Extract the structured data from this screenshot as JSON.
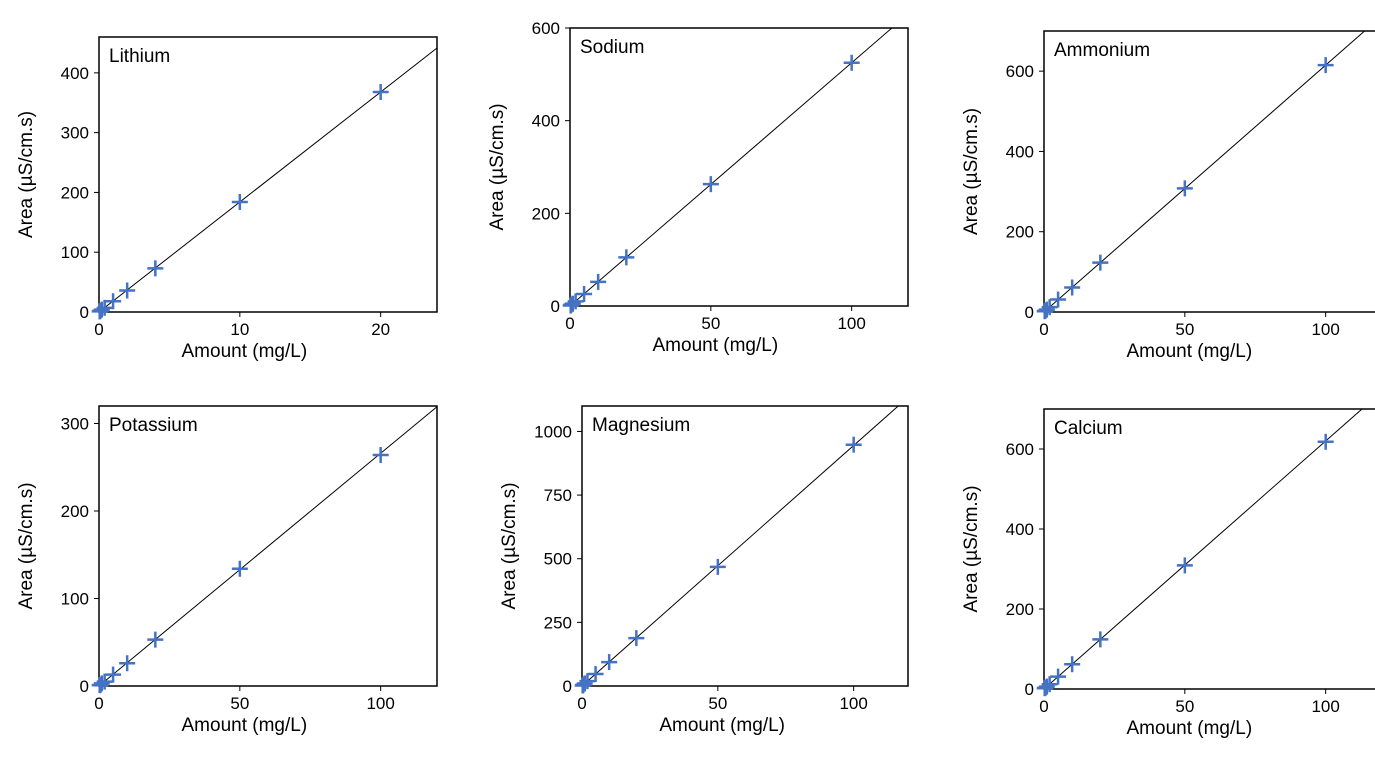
{
  "page": {
    "background": "#ffffff"
  },
  "style": {
    "marker_color": "#4472C4",
    "line_color": "#000000",
    "frame_color": "#000000"
  },
  "chart_data": [
    {
      "type": "scatter",
      "label": "Lithium",
      "xlabel": "Amount (mg/L)",
      "ylabel": "Area (µS/cm.s)",
      "xlim": [
        0,
        24
      ],
      "ylim": [
        0,
        460
      ],
      "xticks": [
        0,
        10,
        20
      ],
      "yticks": [
        0,
        100,
        200,
        300,
        400
      ],
      "x": [
        0.05,
        0.1,
        0.2,
        0.4,
        1,
        2,
        4,
        10,
        20
      ],
      "y": [
        1,
        2,
        4,
        7,
        18,
        36,
        73,
        184,
        368
      ],
      "fit_line": {
        "slope": 18.4,
        "intercept": 0
      }
    },
    {
      "type": "scatter",
      "label": "Sodium",
      "xlabel": "Amount (mg/L)",
      "ylabel": "Area (µS/cm.s)",
      "xlim": [
        0,
        120
      ],
      "ylim": [
        0,
        600
      ],
      "xticks": [
        0,
        50,
        100
      ],
      "yticks": [
        0,
        200,
        400,
        600
      ],
      "x": [
        0.25,
        0.5,
        1,
        2,
        5,
        10,
        20,
        50,
        100
      ],
      "y": [
        1,
        3,
        5,
        10,
        26,
        52,
        105,
        263,
        525
      ],
      "fit_line": {
        "slope": 5.25,
        "intercept": 0
      }
    },
    {
      "type": "scatter",
      "label": "Ammonium",
      "xlabel": "Amount (mg/L)",
      "ylabel": "Area (µS/cm.s)",
      "xlim": [
        0,
        120
      ],
      "ylim": [
        0,
        700
      ],
      "xticks": [
        0,
        50,
        100
      ],
      "yticks": [
        0,
        200,
        400,
        600
      ],
      "x": [
        0.25,
        0.5,
        1,
        2,
        5,
        10,
        20,
        50,
        100
      ],
      "y": [
        2,
        3,
        6,
        12,
        31,
        61,
        123,
        308,
        615
      ],
      "fit_line": {
        "slope": 6.15,
        "intercept": 0
      }
    },
    {
      "type": "scatter",
      "label": "Potassium",
      "xlabel": "Amount (mg/L)",
      "ylabel": "Area (µS/cm.s)",
      "xlim": [
        0,
        120
      ],
      "ylim": [
        0,
        320
      ],
      "xticks": [
        0,
        50,
        100
      ],
      "yticks": [
        0,
        100,
        200,
        300
      ],
      "x": [
        0.25,
        0.5,
        1,
        2,
        5,
        10,
        20,
        50,
        100
      ],
      "y": [
        1,
        1,
        3,
        5,
        13,
        26,
        53,
        134,
        264
      ],
      "fit_line": {
        "slope": 2.66,
        "intercept": 0
      }
    },
    {
      "type": "scatter",
      "label": "Magnesium",
      "xlabel": "Amount (mg/L)",
      "ylabel": "Area (µS/cm.s)",
      "xlim": [
        0,
        120
      ],
      "ylim": [
        0,
        1100
      ],
      "xticks": [
        0,
        50,
        100
      ],
      "yticks": [
        0,
        250,
        500,
        750,
        1000
      ],
      "x": [
        0.25,
        0.5,
        1,
        2,
        5,
        10,
        20,
        50,
        100
      ],
      "y": [
        2,
        5,
        10,
        19,
        47,
        94,
        188,
        468,
        948
      ],
      "fit_line": {
        "slope": 9.45,
        "intercept": 0
      }
    },
    {
      "type": "scatter",
      "label": "Calcium",
      "xlabel": "Amount (mg/L)",
      "ylabel": "Area (µS/cm.s)",
      "xlim": [
        0,
        120
      ],
      "ylim": [
        0,
        700
      ],
      "xticks": [
        0,
        50,
        100
      ],
      "yticks": [
        0,
        200,
        400,
        600
      ],
      "x": [
        0.25,
        0.5,
        1,
        2,
        5,
        10,
        20,
        50,
        100
      ],
      "y": [
        2,
        3,
        6,
        12,
        31,
        62,
        124,
        309,
        618
      ],
      "fit_line": {
        "slope": 6.2,
        "intercept": 0
      }
    }
  ]
}
